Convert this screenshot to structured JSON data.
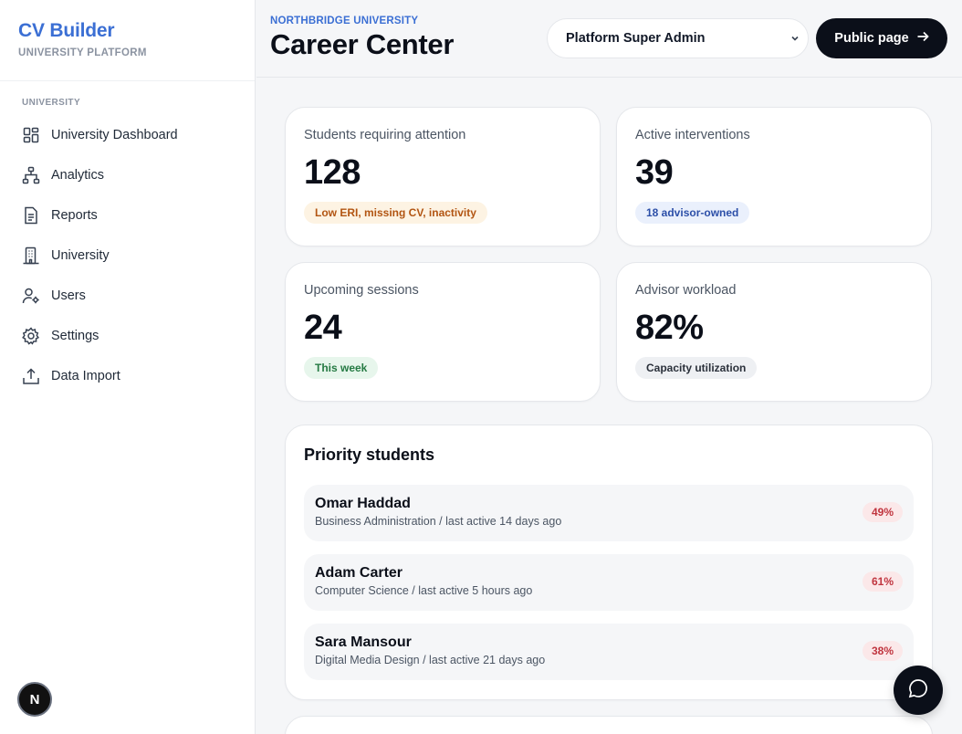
{
  "brand": {
    "title": "CV Builder",
    "subtitle": "UNIVERSITY PLATFORM"
  },
  "sidebar": {
    "section_label": "UNIVERSITY",
    "items": [
      {
        "label": "University Dashboard",
        "icon": "dashboard-grid-icon"
      },
      {
        "label": "Analytics",
        "icon": "analytics-hierarchy-icon"
      },
      {
        "label": "Reports",
        "icon": "report-document-icon"
      },
      {
        "label": "University",
        "icon": "building-icon"
      },
      {
        "label": "Users",
        "icon": "users-gear-icon"
      },
      {
        "label": "Settings",
        "icon": "gear-icon"
      },
      {
        "label": "Data Import",
        "icon": "upload-icon"
      }
    ],
    "avatar_letter": "N"
  },
  "header": {
    "org": "NORTHBRIDGE UNIVERSITY",
    "title": "Career Center",
    "role_select": {
      "value": "Platform Super Admin"
    },
    "public_button": "Public page"
  },
  "stats": [
    {
      "label": "Students requiring attention",
      "value": "128",
      "pill": "Low ERI, missing CV, inactivity",
      "pill_color": "#b25512"
    },
    {
      "label": "Active interventions",
      "value": "39",
      "pill": "18 advisor-owned",
      "pill_color": "#2c4fa8"
    },
    {
      "label": "Upcoming sessions",
      "value": "24",
      "pill": "This week",
      "pill_color": "#257a43"
    },
    {
      "label": "Advisor workload",
      "value": "82%",
      "pill": "Capacity utilization",
      "pill_color": "#2b313b"
    }
  ],
  "priority": {
    "title": "Priority students",
    "students": [
      {
        "name": "Omar Haddad",
        "meta": "Business Administration / last active 14 days ago",
        "score": "49%"
      },
      {
        "name": "Adam Carter",
        "meta": "Computer Science / last active 5 hours ago",
        "score": "61%"
      },
      {
        "name": "Sara Mansour",
        "meta": "Digital Media Design / last active 21 days ago",
        "score": "38%"
      }
    ]
  },
  "colors": {
    "accent": "#3b6fd4",
    "dark": "#0b0f19",
    "danger": "#c0353f"
  }
}
